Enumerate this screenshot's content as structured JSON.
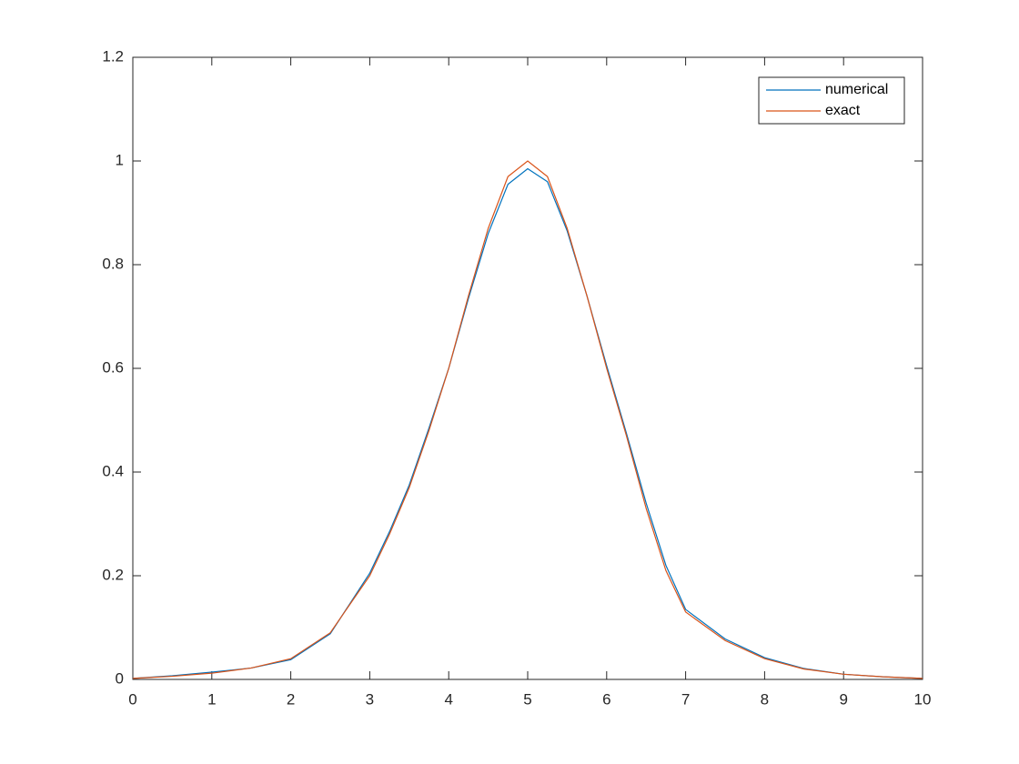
{
  "chart_data": {
    "type": "line",
    "x": [
      0,
      0.5,
      1,
      1.5,
      2,
      2.5,
      3,
      3.25,
      3.5,
      3.75,
      4,
      4.25,
      4.5,
      4.75,
      5,
      5.25,
      5.5,
      5.75,
      6,
      6.25,
      6.5,
      6.75,
      7,
      7.5,
      8,
      8.5,
      9,
      9.5,
      10
    ],
    "series": [
      {
        "name": "numerical",
        "color": "#0072bd",
        "values": [
          0.002,
          0.007,
          0.014,
          0.022,
          0.038,
          0.088,
          0.205,
          0.285,
          0.375,
          0.485,
          0.6,
          0.735,
          0.86,
          0.955,
          0.985,
          0.96,
          0.865,
          0.74,
          0.605,
          0.475,
          0.34,
          0.22,
          0.135,
          0.078,
          0.042,
          0.021,
          0.01,
          0.005,
          0.002
        ]
      },
      {
        "name": "exact",
        "color": "#d95319",
        "values": [
          0.002,
          0.006,
          0.012,
          0.022,
          0.04,
          0.09,
          0.2,
          0.28,
          0.37,
          0.48,
          0.6,
          0.74,
          0.87,
          0.97,
          1.0,
          0.97,
          0.87,
          0.74,
          0.6,
          0.47,
          0.33,
          0.21,
          0.13,
          0.075,
          0.04,
          0.02,
          0.01,
          0.005,
          0.002
        ]
      }
    ],
    "xlim": [
      0,
      10
    ],
    "xticks": [
      0,
      1,
      2,
      3,
      4,
      5,
      6,
      7,
      8,
      9,
      10
    ],
    "ylim": [
      0,
      1.2
    ],
    "yticks": [
      0,
      0.2,
      0.4,
      0.6,
      0.8,
      1,
      1.2
    ],
    "legend": "top-right",
    "grid": false
  }
}
